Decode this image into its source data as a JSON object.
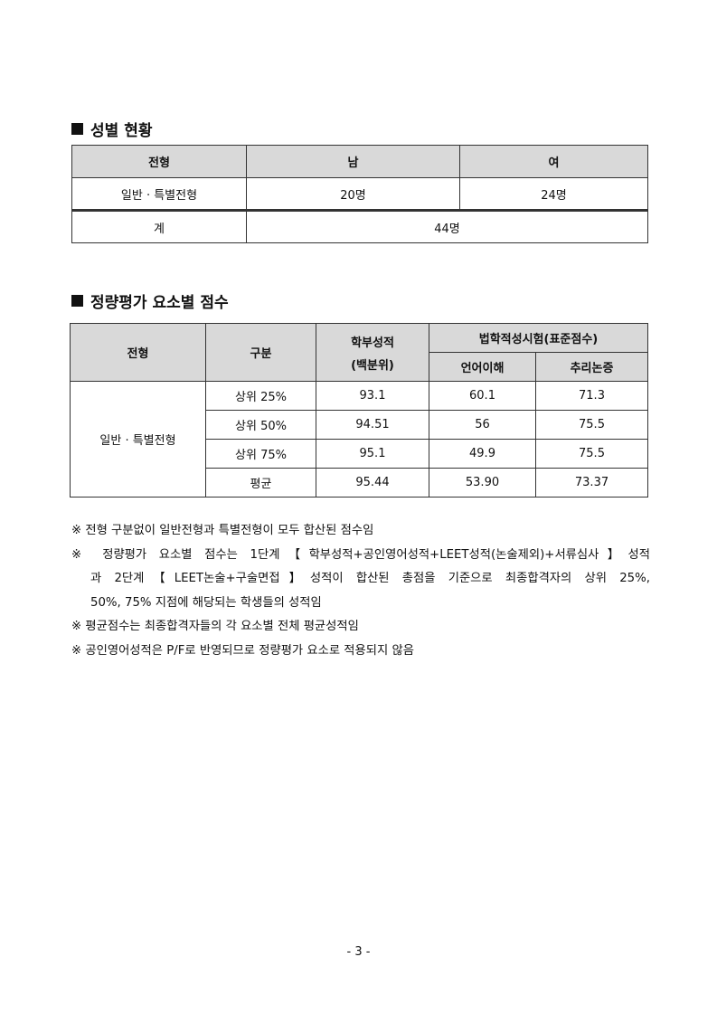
{
  "gender": {
    "title": "성별 현황",
    "headers": [
      "전형",
      "남",
      "여"
    ],
    "row": [
      "일반 · 특별전형",
      "20명",
      "24명"
    ],
    "total": [
      "계",
      "44명"
    ]
  },
  "scores": {
    "title": "정량평가 요소별 점수",
    "h_type": "전형",
    "h_cat": "구분",
    "h_gpa": "학부성적",
    "h_gpa2": "(백분위)",
    "h_leet": "법학적성시험(표준점수)",
    "h_verbal": "언어이해",
    "h_reason": "추리논증",
    "type": "일반 · 특별전형",
    "rows": [
      [
        "상위 25%",
        "93.1",
        "60.1",
        "71.3"
      ],
      [
        "상위 50%",
        "94.51",
        "56",
        "75.5"
      ],
      [
        "상위 75%",
        "95.1",
        "49.9",
        "75.5"
      ],
      [
        "평균",
        "95.44",
        "53.90",
        "73.37"
      ]
    ]
  },
  "notes": [
    "※ 전형 구분없이 일반전형과 특별전형이 모두 합산된 점수임",
    "※ 정량평가 요소별 점수는 1단계【학부성적+공인영어성적+LEET성적(논술제외)+서류심사】성적",
    "과 2단계【LEET논술+구술면접】성적이 합산된 총점을 기준으로 최종합격자의 상위 25%,",
    "50%, 75% 지점에 해당되는 학생들의 성적임",
    "※ 평균점수는 최종합격자들의 각 요소별 전체 평균성적임",
    "※ 공인영어성적은 P/F로 반영되므로 정량평가 요소로 적용되지 않음"
  ],
  "page_number": "- 3 -"
}
